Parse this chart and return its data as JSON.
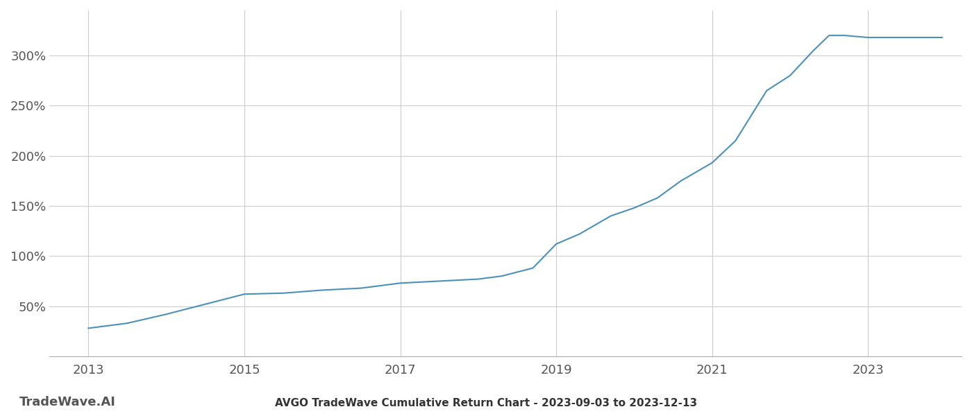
{
  "title": "AVGO TradeWave Cumulative Return Chart - 2023-09-03 to 2023-12-13",
  "watermark": "TradeWave.AI",
  "line_color": "#4a90b8",
  "line_width": 1.5,
  "background_color": "#ffffff",
  "grid_color": "#cccccc",
  "x_years": [
    2013.0,
    2013.5,
    2014.0,
    2014.5,
    2015.0,
    2015.5,
    2016.0,
    2016.5,
    2017.0,
    2017.5,
    2018.0,
    2018.3,
    2018.7,
    2019.0,
    2019.3,
    2019.7,
    2020.0,
    2020.3,
    2020.6,
    2021.0,
    2021.3,
    2021.5,
    2021.7,
    2022.0,
    2022.3,
    2022.5,
    2022.7,
    2023.0,
    2023.5,
    2023.95
  ],
  "y_values": [
    28,
    33,
    42,
    52,
    62,
    63,
    66,
    68,
    73,
    75,
    77,
    80,
    88,
    112,
    122,
    140,
    148,
    158,
    175,
    193,
    215,
    240,
    265,
    280,
    305,
    320,
    320,
    318,
    318,
    318
  ],
  "yticks": [
    50,
    100,
    150,
    200,
    250,
    300
  ],
  "ytick_labels": [
    "50%",
    "100%",
    "150%",
    "200%",
    "250%",
    "300%"
  ],
  "xticks": [
    2013,
    2015,
    2017,
    2019,
    2021,
    2023
  ],
  "xlim": [
    2012.5,
    2024.2
  ],
  "ylim": [
    0,
    345
  ],
  "title_fontsize": 11,
  "tick_fontsize": 13,
  "watermark_fontsize": 13
}
